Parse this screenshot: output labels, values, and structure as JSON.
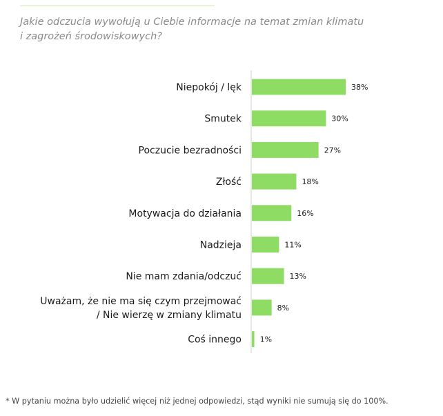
{
  "question": {
    "line1": "Jakie odczucia wywołują u Ciebie informacje na temat zmian klimatu",
    "line2": "i zagrożeń środowiskowych?"
  },
  "footnote": "* W pytaniu można było udzielić więcej niż jednej odpowiedzi, stąd wyniki nie sumują się do 100%.",
  "chart_data": {
    "type": "bar",
    "orientation": "horizontal",
    "value_suffix": "%",
    "bar_color": "#8fdc64",
    "axis_color": "#cfcfcf",
    "categories": [
      [
        "Niepokój / lęk"
      ],
      [
        "Smutek"
      ],
      [
        "Poczucie bezradności"
      ],
      [
        "Złość"
      ],
      [
        "Motywacja do działania"
      ],
      [
        "Nadzieja"
      ],
      [
        "Nie mam zdania/odczuć"
      ],
      [
        "Uważam, że nie ma się czym przejmować",
        "/ Nie wierzę w zmiany klimatu"
      ],
      [
        "Coś innego"
      ]
    ],
    "values": [
      38,
      30,
      27,
      18,
      16,
      11,
      13,
      8,
      1
    ],
    "grid": false,
    "legend": "none"
  }
}
